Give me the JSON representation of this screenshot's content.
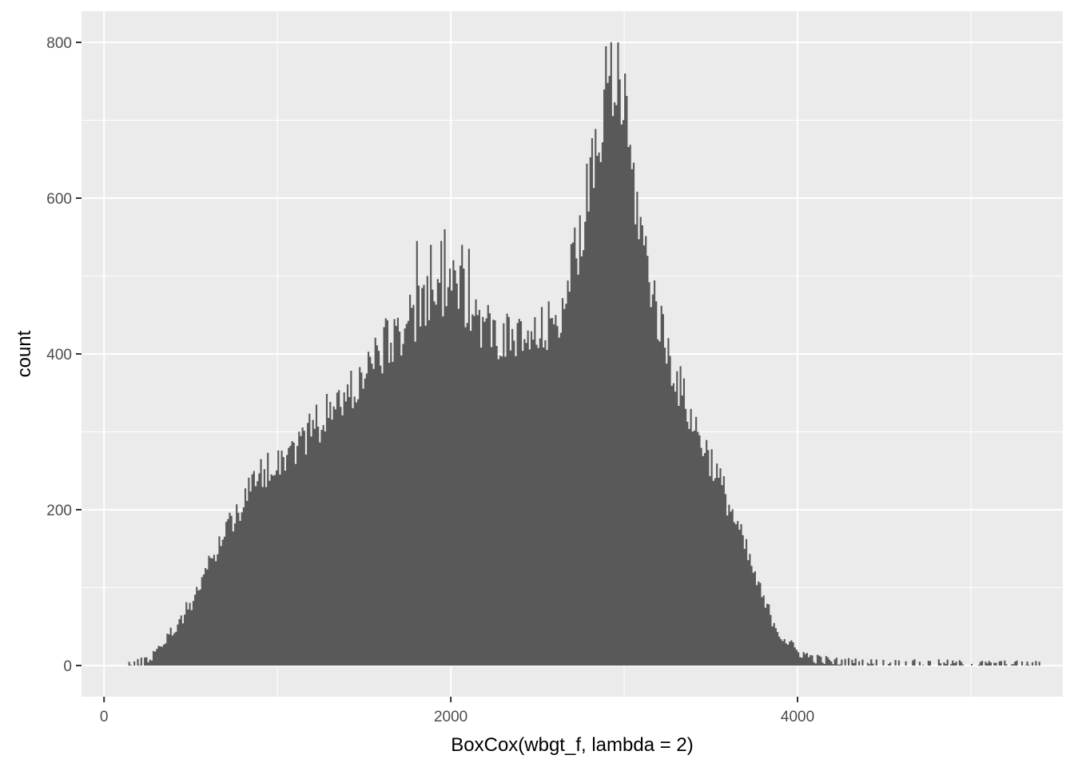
{
  "chart_data": {
    "type": "bar",
    "title": "",
    "xlabel": "BoxCox(wbgt_f, lambda = 2)",
    "ylabel": "count",
    "xlim": [
      -130,
      5530
    ],
    "ylim": [
      -40,
      840
    ],
    "x_ticks": [
      0,
      2000,
      4000
    ],
    "x_tick_labels": [
      "0",
      "2000",
      "4000"
    ],
    "y_ticks": [
      0,
      200,
      400,
      600,
      800
    ],
    "y_tick_labels": [
      "0",
      "200",
      "400",
      "600",
      "800"
    ],
    "grid": true,
    "legend": "none",
    "bin_width": 10,
    "profile_x": [
      130,
      200,
      260,
      300,
      400,
      500,
      600,
      700,
      800,
      900,
      1000,
      1100,
      1200,
      1300,
      1400,
      1500,
      1600,
      1700,
      1800,
      1900,
      2000,
      2100,
      2200,
      2300,
      2400,
      2500,
      2600,
      2700,
      2800,
      2900,
      2950,
      3000,
      3100,
      3200,
      3300,
      3400,
      3500,
      3600,
      3700,
      3800,
      3900,
      4000,
      4100,
      4200,
      4400,
      4600,
      4800,
      5000,
      5200,
      5420
    ],
    "profile_y": [
      1,
      3,
      8,
      20,
      45,
      80,
      125,
      175,
      210,
      245,
      265,
      280,
      305,
      325,
      345,
      375,
      405,
      430,
      450,
      470,
      485,
      470,
      435,
      420,
      415,
      420,
      440,
      505,
      615,
      705,
      725,
      700,
      555,
      445,
      370,
      310,
      265,
      210,
      150,
      85,
      40,
      18,
      9,
      5,
      3,
      2,
      2,
      1,
      1,
      0
    ],
    "spikes": [
      [
        1800,
        545
      ],
      [
        1880,
        540
      ],
      [
        1940,
        545
      ],
      [
        1960,
        560
      ],
      [
        2060,
        540
      ],
      [
        2100,
        535
      ],
      [
        2890,
        795
      ],
      [
        2920,
        800
      ],
      [
        2960,
        800
      ],
      [
        3000,
        760
      ]
    ],
    "colors": {
      "bar": "#595959",
      "panel": "#EBEBEB",
      "grid": "#FFFFFF",
      "tick": "#333333"
    }
  }
}
